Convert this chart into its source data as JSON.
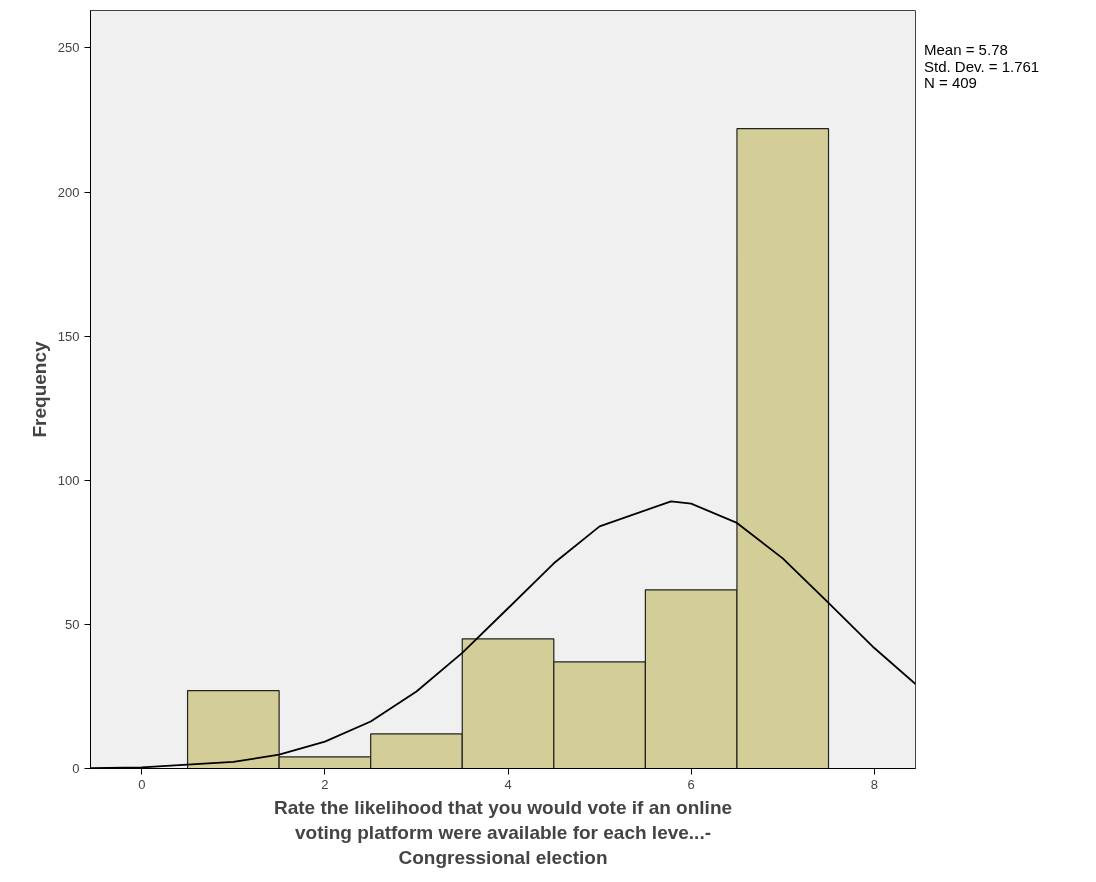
{
  "chart_data": {
    "type": "histogram",
    "xlabel": "Rate the likelihood that you would vote if an online\nvoting platform were available for each leve...-\nCongressional election",
    "ylabel": "Frequency",
    "annotations": [
      "Mean = 5.78\nStd. Dev. = 1.761\nN = 409"
    ],
    "series": [
      {
        "bins": [
          0.5,
          1.5,
          2.5,
          3.5,
          4.5,
          5.5,
          6.5,
          7.5
        ],
        "values": [
          27,
          4,
          12,
          45,
          37,
          62,
          222
        ],
        "color": "#d3ce97"
      },
      {
        "type": "line",
        "color": "#000000",
        "x": [
          -0.56,
          0,
          1,
          1.5,
          2,
          2.5,
          3,
          3.5,
          4,
          4.5,
          5,
          5.78,
          6,
          6.5,
          7,
          7.5,
          8,
          8.45
        ],
        "values": [
          0.1,
          0.4,
          2.3,
          4.8,
          9.3,
          16.3,
          26.7,
          40.1,
          55.6,
          71.2,
          84.0,
          92.7,
          91.9,
          85.2,
          72.9,
          57.5,
          41.8,
          29.3
        ]
      }
    ],
    "xlim": [
      -0.56,
      8.45
    ],
    "ylim": [
      0,
      263
    ],
    "xticks": [
      0,
      2,
      4,
      6,
      8
    ],
    "yticks": [
      0,
      50,
      100,
      150,
      200,
      250
    ],
    "marker": "none",
    "line_style": "solid"
  }
}
